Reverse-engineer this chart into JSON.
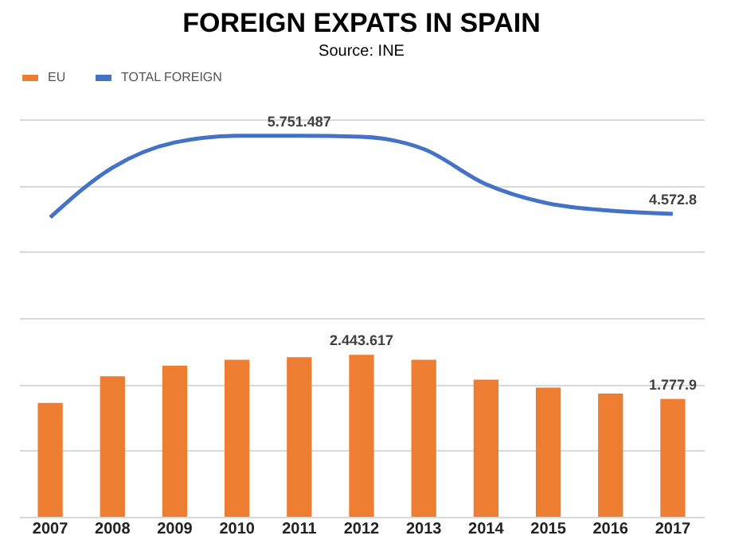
{
  "chart_data": {
    "type": "bar",
    "title": "FOREIGN EXPATS IN SPAIN",
    "subtitle": "Source: INE",
    "categories": [
      "2007",
      "2008",
      "2009",
      "2010",
      "2011",
      "2012",
      "2013",
      "2014",
      "2015",
      "2016",
      "2017"
    ],
    "series": [
      {
        "name": "EU",
        "color": "#ed7d31",
        "values": [
          1720000,
          2120000,
          2280000,
          2370000,
          2410000,
          2443617,
          2370000,
          2070000,
          1950000,
          1860000,
          1777900
        ],
        "value_labels": [
          null,
          null,
          null,
          null,
          null,
          "2.443.617",
          null,
          null,
          null,
          null,
          "1.777.9"
        ]
      },
      {
        "name": "TOTAL FOREIGN",
        "type": "line",
        "color": "#4472c4",
        "values": [
          4520000,
          5270000,
          5650000,
          5750000,
          5751487,
          5736000,
          5550000,
          5020000,
          4730000,
          4620000,
          4572800
        ],
        "value_labels": [
          null,
          null,
          null,
          null,
          "5.751.487",
          null,
          null,
          null,
          null,
          null,
          "4.572.8"
        ]
      }
    ],
    "tick_labels": "x",
    "grid": "y",
    "legend": "top"
  }
}
